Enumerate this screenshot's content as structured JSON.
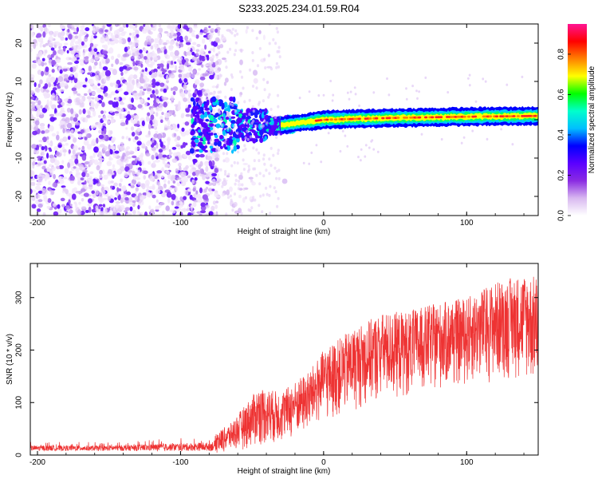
{
  "figure_title": "S233.2025.234.01.59.R04",
  "chart_data": [
    {
      "type": "heatmap",
      "title": "",
      "xlabel": "Height of straight line (km)",
      "ylabel": "Frequency (Hz)",
      "xlim": [
        -205,
        150
      ],
      "ylim": [
        -25,
        25
      ],
      "xticks": [
        -200,
        -100,
        0,
        100
      ],
      "yticks": [
        -20,
        -10,
        0,
        10,
        20
      ],
      "colorbar": {
        "label": "Normalized spectral amplitude",
        "range": [
          0,
          0.95
        ],
        "ticks": [
          "0.0",
          "0.2",
          "0.4",
          "0.6",
          "0.8"
        ],
        "colors": [
          "#ffffff",
          "#d8b8f0",
          "#8a2be2",
          "#5a00ff",
          "#0000ff",
          "#00bfff",
          "#00ffcc",
          "#00ff00",
          "#ffff00",
          "#ff8000",
          "#ff0000",
          "#ff1493"
        ]
      },
      "description_trend": {
        "noise_region_km": [
          -205,
          -75
        ],
        "transition_region_km": [
          -90,
          -20
        ],
        "signal_line_freq_hz": [
          [
            -30,
            -1.5
          ],
          [
            0,
            0.0
          ],
          [
            50,
            0.5
          ],
          [
            100,
            0.8
          ],
          [
            150,
            1.0
          ]
        ]
      }
    },
    {
      "type": "line",
      "title": "",
      "xlabel": "Height of straight line (km)",
      "ylabel": "SNR (10 * v/v)",
      "xlim": [
        -205,
        150
      ],
      "ylim": [
        0,
        365
      ],
      "xticks": [
        -200,
        -100,
        0,
        100
      ],
      "yticks": [
        0,
        100,
        200,
        300
      ],
      "series": [
        {
          "name": "SNR",
          "color": "#ee3333",
          "envelope": [
            {
              "x": -205,
              "low": 0,
              "high": 25
            },
            {
              "x": -150,
              "low": 0,
              "high": 25
            },
            {
              "x": -80,
              "low": 0,
              "high": 35
            },
            {
              "x": -65,
              "low": 5,
              "high": 60
            },
            {
              "x": -45,
              "low": 15,
              "high": 130
            },
            {
              "x": -30,
              "low": 20,
              "high": 120
            },
            {
              "x": -10,
              "low": 40,
              "high": 160
            },
            {
              "x": 0,
              "low": 60,
              "high": 200
            },
            {
              "x": 20,
              "low": 80,
              "high": 240
            },
            {
              "x": 40,
              "low": 100,
              "high": 270
            },
            {
              "x": 60,
              "low": 110,
              "high": 275
            },
            {
              "x": 80,
              "low": 120,
              "high": 290
            },
            {
              "x": 100,
              "low": 130,
              "high": 300
            },
            {
              "x": 120,
              "low": 140,
              "high": 330
            },
            {
              "x": 140,
              "low": 140,
              "high": 345
            },
            {
              "x": 150,
              "low": 120,
              "high": 340
            }
          ]
        }
      ]
    }
  ]
}
